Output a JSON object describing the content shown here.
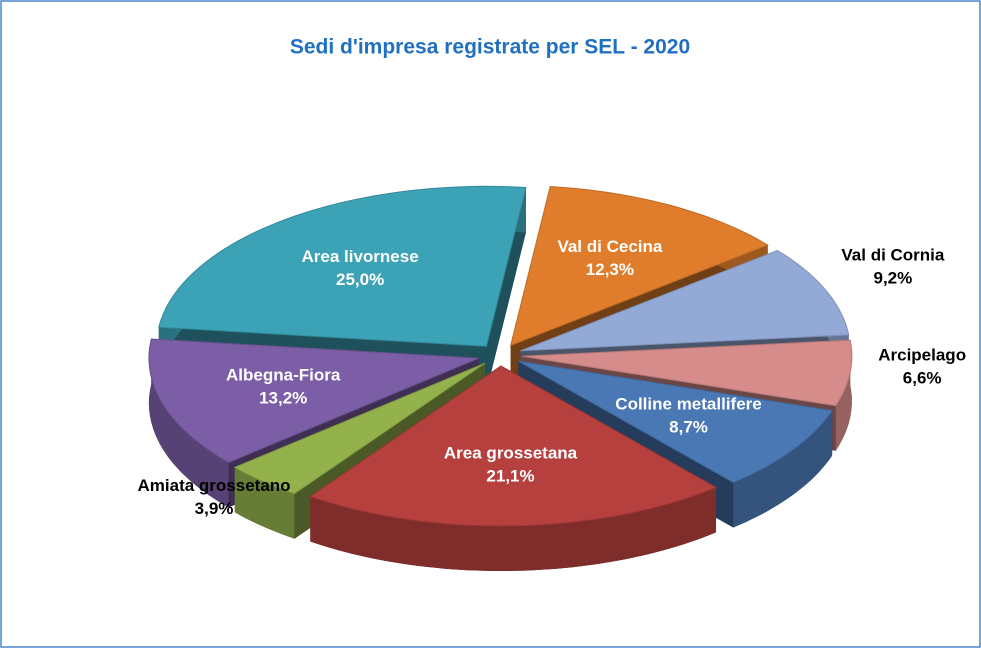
{
  "chart_data": {
    "type": "pie",
    "title": "Sedi d'impresa registrate per SEL - 2020",
    "categories": [
      "Val di Cecina",
      "Val di Cornia",
      "Arcipelago",
      "Colline metallifere",
      "Area grossetana",
      "Amiata grossetano",
      "Albegna-Fiora",
      "Area livornese"
    ],
    "values": [
      12.3,
      9.2,
      6.6,
      8.7,
      21.1,
      3.9,
      13.2,
      25.0
    ],
    "value_labels": [
      "12,3%",
      "9,2%",
      "6,6%",
      "8,7%",
      "21,1%",
      "3,9%",
      "13,2%",
      "25,0%"
    ],
    "colors": [
      "#e07d2c",
      "#93a9d6",
      "#d58c8b",
      "#4a78b4",
      "#b5403e",
      "#93b24c",
      "#7b5ea6",
      "#3ca2b6"
    ]
  }
}
